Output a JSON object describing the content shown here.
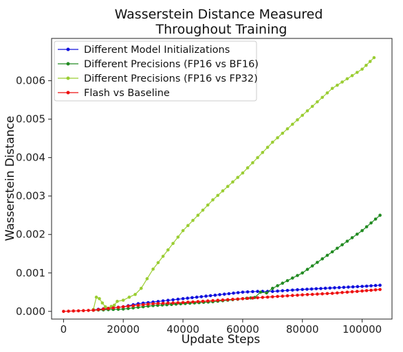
{
  "chart_data": {
    "type": "line",
    "title_lines": [
      "Wasserstein Distance Measured",
      "Throughout Training"
    ],
    "xlabel": "Update Steps",
    "ylabel": "Wasserstein Distance",
    "xlim": [
      -4000,
      110000
    ],
    "ylim": [
      -0.0002,
      0.0071
    ],
    "x_ticks": [
      0,
      20000,
      40000,
      60000,
      80000,
      100000
    ],
    "x_tick_labels": [
      "0",
      "20000",
      "40000",
      "60000",
      "80000",
      "100000"
    ],
    "y_ticks": [
      0.0,
      0.001,
      0.002,
      0.003,
      0.004,
      0.005,
      0.006
    ],
    "y_tick_labels": [
      "0.000",
      "0.001",
      "0.002",
      "0.003",
      "0.004",
      "0.005",
      "0.006"
    ],
    "grid": false,
    "legend_position": "top-left",
    "series": [
      {
        "name": "Different Model Initializations",
        "color": "#1010dd",
        "points": [
          [
            10000,
            4e-05
          ],
          [
            20000,
            0.00012
          ],
          [
            25000,
            0.0002
          ],
          [
            40000,
            0.00033
          ],
          [
            60000,
            0.0005
          ],
          [
            65000,
            0.00052
          ],
          [
            70000,
            0.00052
          ],
          [
            80000,
            0.00057
          ],
          [
            100000,
            0.00065
          ],
          [
            106000,
            0.00068
          ]
        ]
      },
      {
        "name": "Different Precisions (FP16 vs BF16)",
        "color": "#228b22",
        "points": [
          [
            10000,
            3e-05
          ],
          [
            20000,
            6e-05
          ],
          [
            30000,
            0.00015
          ],
          [
            50000,
            0.00025
          ],
          [
            60000,
            0.00033
          ],
          [
            64000,
            0.00036
          ],
          [
            66000,
            0.0005
          ],
          [
            68000,
            0.00048
          ],
          [
            70000,
            0.0006
          ],
          [
            80000,
            0.001
          ],
          [
            90000,
            0.00155
          ],
          [
            100000,
            0.0021
          ],
          [
            106000,
            0.0025
          ]
        ]
      },
      {
        "name": "Different Precisions (FP16 vs FP32)",
        "color": "#9acd32",
        "points": [
          [
            10000,
            5e-05
          ],
          [
            11000,
            0.00037
          ],
          [
            12000,
            0.00033
          ],
          [
            13000,
            0.00022
          ],
          [
            14000,
            0.00012
          ],
          [
            15000,
            8e-05
          ],
          [
            16000,
            0.00013
          ],
          [
            17000,
            0.00016
          ],
          [
            18000,
            0.00026
          ],
          [
            20000,
            0.00029
          ],
          [
            22000,
            0.00037
          ],
          [
            24000,
            0.00044
          ],
          [
            26000,
            0.0006
          ],
          [
            28000,
            0.00085
          ],
          [
            30000,
            0.0011
          ],
          [
            40000,
            0.0021
          ],
          [
            50000,
            0.0029
          ],
          [
            60000,
            0.0036
          ],
          [
            70000,
            0.0044
          ],
          [
            80000,
            0.0051
          ],
          [
            90000,
            0.0058
          ],
          [
            100000,
            0.0063
          ],
          [
            104000,
            0.0066
          ]
        ]
      },
      {
        "name": "Flash vs Baseline",
        "color": "#ee1111",
        "points": [
          [
            0,
            0.0
          ],
          [
            10000,
            3e-05
          ],
          [
            20000,
            0.00012
          ],
          [
            30000,
            0.0002
          ],
          [
            40000,
            0.00023
          ],
          [
            50000,
            0.00028
          ],
          [
            60000,
            0.00033
          ],
          [
            70000,
            0.00038
          ],
          [
            80000,
            0.00043
          ],
          [
            90000,
            0.00047
          ],
          [
            100000,
            0.00053
          ],
          [
            106000,
            0.00057
          ]
        ]
      }
    ]
  }
}
